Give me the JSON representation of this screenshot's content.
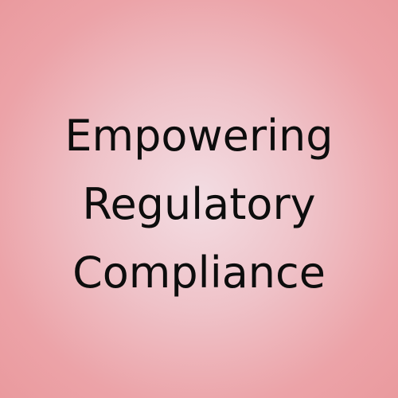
{
  "headline": {
    "lines": [
      "Empowering",
      "Regulatory",
      "Compliance"
    ]
  },
  "colors": {
    "text": "#0d0d0d",
    "background_center": "#f3dde3",
    "background_edge": "#ea9a9e"
  }
}
